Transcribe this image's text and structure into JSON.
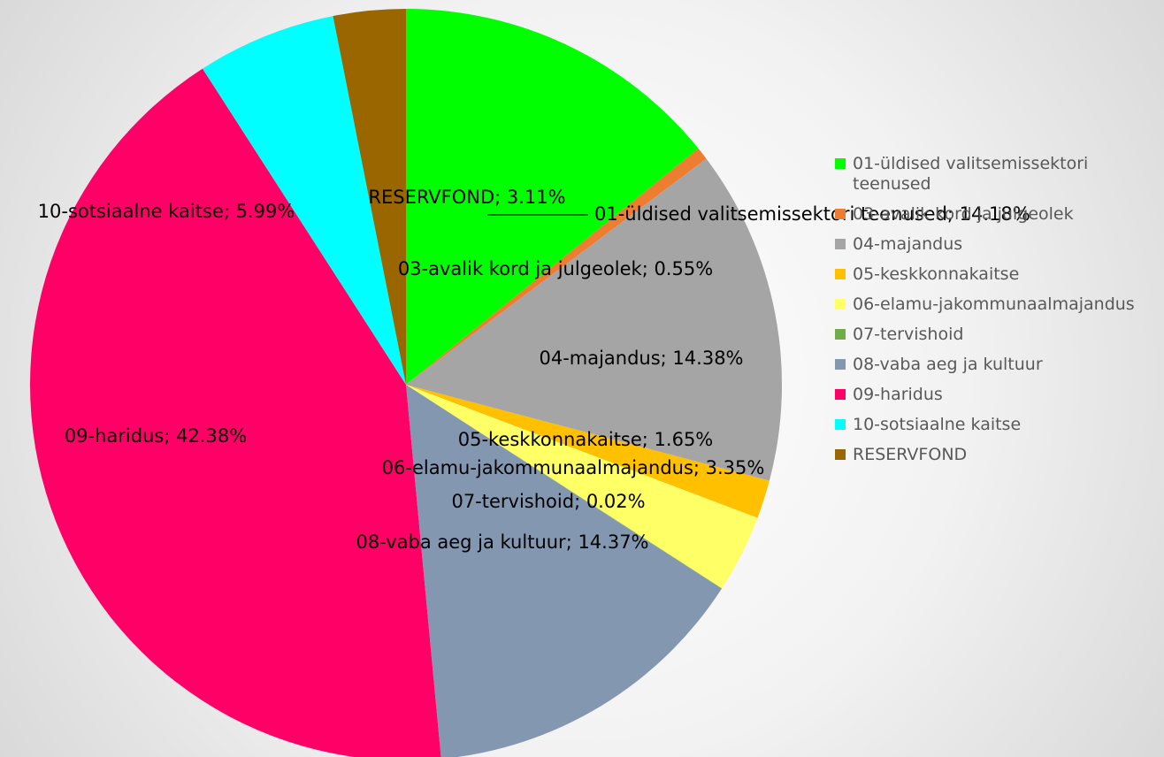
{
  "chart_data": {
    "type": "pie",
    "categories": [
      "01-üldised valitsemissektori teenused",
      "03-avalik kord ja julgeolek",
      "04-majandus",
      "05-keskkonnakaitse",
      "06-elamu-jakommunaalmajandus",
      "07-tervishoid",
      "08-vaba aeg ja kultuur",
      "09-haridus",
      "10-sotsiaalne kaitse",
      "RESERVFOND"
    ],
    "values": [
      14.18,
      0.55,
      14.38,
      1.65,
      3.35,
      0.02,
      14.37,
      42.38,
      5.99,
      3.11
    ],
    "value_labels": [
      "01-üldised valitsemissektori teenused; 14.18%",
      "03-avalik kord ja julgeolek; 0.55%",
      "04-majandus; 14.38%",
      "05-keskkonnakaitse; 1.65%",
      "06-elamu-jakommunaalmajandus; 3.35%",
      "07-tervishoid; 0.02%",
      "08-vaba aeg ja kultuur; 14.37%",
      "09-haridus; 42.38%",
      "10-sotsiaalne kaitse; 5.99%",
      "RESERVFOND; 3.11%"
    ],
    "colors": [
      "#00ff00",
      "#ed7d31",
      "#a5a5a5",
      "#ffc000",
      "#ffff66",
      "#70ad47",
      "#8497b0",
      "#ff0066",
      "#00ffff",
      "#996600"
    ],
    "legend": "right"
  }
}
